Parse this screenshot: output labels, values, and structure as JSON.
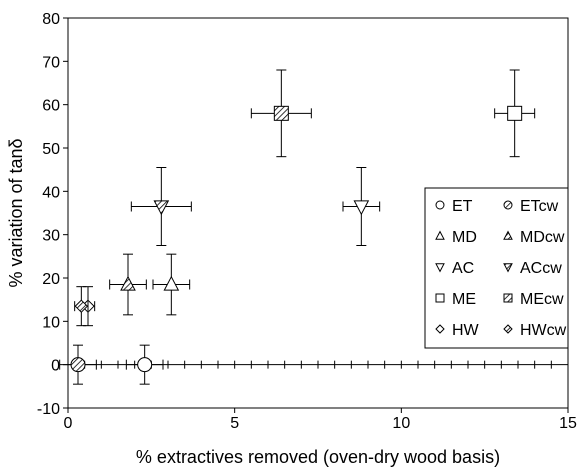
{
  "chart_data": {
    "type": "scatter",
    "xlabel": "% extractives removed (oven-dry wood basis)",
    "ylabel": "% variation of tanδ",
    "xlim": [
      0,
      15
    ],
    "ylim": [
      -10,
      80
    ],
    "xticks": [
      "0",
      "5",
      "10",
      "15"
    ],
    "yticks": [
      "-10",
      "0",
      "10",
      "20",
      "30",
      "40",
      "50",
      "60",
      "70",
      "80"
    ],
    "x_minor_step": 0.5,
    "grid": false,
    "legend_position": "right",
    "series": [
      {
        "name": "ET",
        "marker": "circle-open",
        "points": [
          {
            "x": 2.3,
            "y": 0,
            "xerr": 0.55,
            "yerr": 4.5
          }
        ]
      },
      {
        "name": "ETcw",
        "marker": "circle-hatched",
        "points": [
          {
            "x": 0.3,
            "y": 0,
            "xerr": 0.55,
            "yerr": 4.5
          }
        ]
      },
      {
        "name": "MD",
        "marker": "triangle-up-open",
        "points": [
          {
            "x": 3.1,
            "y": 18.5,
            "xerr": 0.55,
            "yerr": 7
          }
        ]
      },
      {
        "name": "MDcw",
        "marker": "triangle-up-hatched",
        "points": [
          {
            "x": 1.8,
            "y": 18.5,
            "xerr": 0.55,
            "yerr": 7
          }
        ]
      },
      {
        "name": "AC",
        "marker": "triangle-down-open",
        "points": [
          {
            "x": 8.8,
            "y": 36.5,
            "xerr": 0.55,
            "yerr": 9
          }
        ]
      },
      {
        "name": "ACcw",
        "marker": "triangle-down-hatched",
        "points": [
          {
            "x": 2.8,
            "y": 36.5,
            "xerr": 0.9,
            "yerr": 9
          }
        ]
      },
      {
        "name": "ME",
        "marker": "square-open",
        "points": [
          {
            "x": 13.4,
            "y": 58,
            "xerr": 0.6,
            "yerr": 10
          }
        ]
      },
      {
        "name": "MEcw",
        "marker": "square-hatched",
        "points": [
          {
            "x": 6.4,
            "y": 58,
            "xerr": 0.9,
            "yerr": 10
          }
        ]
      },
      {
        "name": "HW",
        "marker": "diamond-open",
        "points": [
          {
            "x": 0.6,
            "y": 13.5,
            "xerr": 0.2,
            "yerr": 4.5
          }
        ]
      },
      {
        "name": "HWcw",
        "marker": "diamond-hatched",
        "points": [
          {
            "x": 0.4,
            "y": 13.5,
            "xerr": 0.2,
            "yerr": 4.5
          }
        ]
      }
    ],
    "legend_layout": [
      [
        "ET",
        "ETcw"
      ],
      [
        "MD",
        "MDcw"
      ],
      [
        "AC",
        "ACcw"
      ],
      [
        "ME",
        "MEcw"
      ],
      [
        "HW",
        "HWcw"
      ]
    ]
  }
}
